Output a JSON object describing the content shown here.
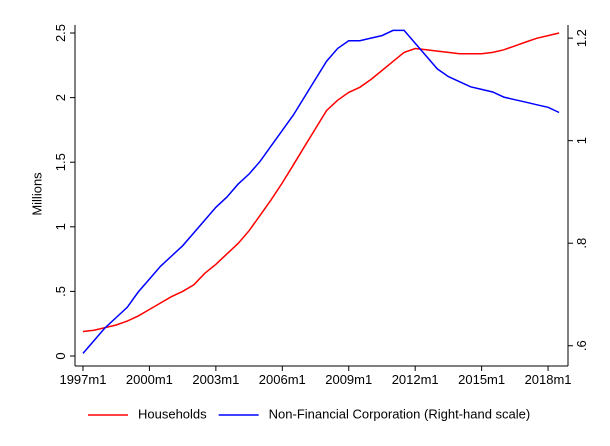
{
  "chart_data": {
    "type": "line",
    "y_label": "Millions",
    "x": [
      1997,
      1997.5,
      1998,
      1998.5,
      1999,
      1999.5,
      2000,
      2000.5,
      2001,
      2001.5,
      2002,
      2002.5,
      2003,
      2003.5,
      2004,
      2004.5,
      2005,
      2005.5,
      2006,
      2006.5,
      2007,
      2007.5,
      2008,
      2008.5,
      2009,
      2009.5,
      2010,
      2010.5,
      2011,
      2011.5,
      2012,
      2012.5,
      2013,
      2013.5,
      2014,
      2014.5,
      2015,
      2015.5,
      2016,
      2016.5,
      2017,
      2017.5,
      2018,
      2018.5
    ],
    "series": [
      {
        "name": "Households",
        "color": "#ff0000",
        "axis": "y",
        "values": [
          0.19,
          0.2,
          0.22,
          0.24,
          0.27,
          0.31,
          0.36,
          0.41,
          0.46,
          0.5,
          0.55,
          0.64,
          0.71,
          0.79,
          0.87,
          0.97,
          1.09,
          1.21,
          1.34,
          1.48,
          1.62,
          1.76,
          1.9,
          1.98,
          2.04,
          2.08,
          2.14,
          2.21,
          2.28,
          2.35,
          2.38,
          2.37,
          2.36,
          2.35,
          2.34,
          2.34,
          2.34,
          2.35,
          2.37,
          2.4,
          2.43,
          2.46,
          2.48,
          2.5
        ]
      },
      {
        "name": "Non-Financial Corporation (Right-hand scale)",
        "color": "#0000ff",
        "axis": "y2",
        "values": [
          0.585,
          0.61,
          0.635,
          0.655,
          0.675,
          0.705,
          0.73,
          0.755,
          0.775,
          0.795,
          0.82,
          0.845,
          0.87,
          0.89,
          0.915,
          0.935,
          0.96,
          0.99,
          1.02,
          1.05,
          1.085,
          1.12,
          1.155,
          1.18,
          1.195,
          1.195,
          1.2,
          1.205,
          1.215,
          1.215,
          1.19,
          1.165,
          1.14,
          1.125,
          1.115,
          1.105,
          1.1,
          1.095,
          1.085,
          1.08,
          1.075,
          1.07,
          1.065,
          1.055
        ]
      }
    ],
    "xlim": [
      1996.64,
      2018.9
    ],
    "xticks": [
      {
        "value": 1997,
        "label": "1997m1"
      },
      {
        "value": 2000,
        "label": "2000m1"
      },
      {
        "value": 2003,
        "label": "2003m1"
      },
      {
        "value": 2006,
        "label": "2006m1"
      },
      {
        "value": 2009,
        "label": "2009m1"
      },
      {
        "value": 2012,
        "label": "2012m1"
      },
      {
        "value": 2015,
        "label": "2015m1"
      },
      {
        "value": 2018,
        "label": "2018m1"
      }
    ],
    "ylim": [
      0,
      2.5
    ],
    "yticks": [
      0,
      {
        "value": 0.5,
        "label": ".5"
      },
      1,
      1.5,
      2,
      2.5
    ],
    "y2lim": [
      0.58,
      1.21
    ],
    "y2ticks": [
      {
        "value": 0.6,
        "label": ".6"
      },
      {
        "value": 0.8,
        "label": ".8"
      },
      1,
      1.2
    ],
    "grid": false,
    "legend_position": "bottom"
  }
}
